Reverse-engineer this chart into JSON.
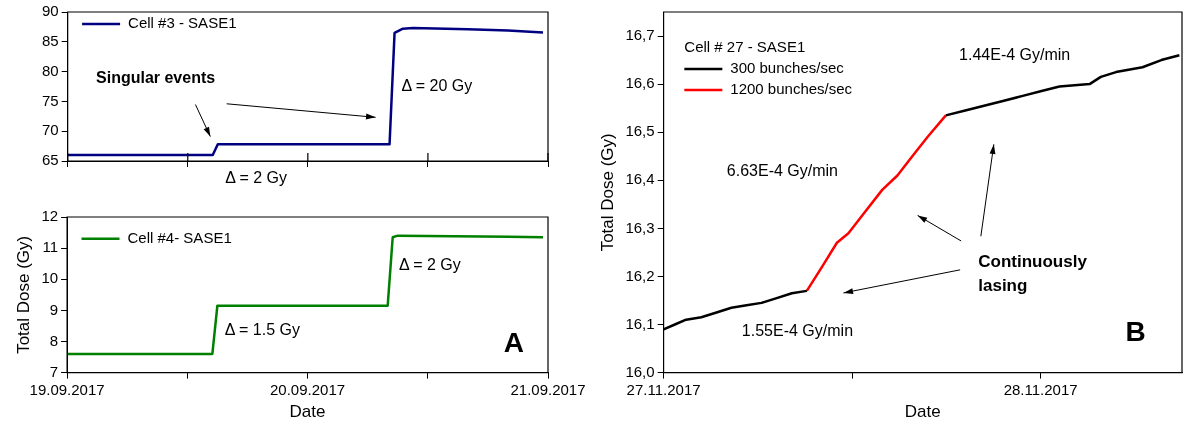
{
  "chart_data": [
    {
      "type": "line",
      "ylim": [
        65,
        90
      ],
      "yticks": [
        65,
        70,
        75,
        80,
        85,
        90
      ],
      "xlim": [
        "2017-09-19",
        "2017-09-21"
      ],
      "xticks": [
        {
          "value": "2017-09-19",
          "label": null
        },
        {
          "value": "2017-09-19T12:00",
          "label": null
        },
        {
          "value": "2017-09-20",
          "label": null
        },
        {
          "value": "2017-09-20T12:00",
          "label": null
        },
        {
          "value": "2017-09-21",
          "label": null
        }
      ],
      "tick_labels": "y",
      "grid": false,
      "legend": "top left",
      "marker": "none",
      "line_style": "solid",
      "series": [
        {
          "name": "Cell #3 - SASE1",
          "color": "#000080",
          "x": [
            "2017-09-19T00:00",
            "2017-09-19T14:30",
            "2017-09-19T15:00",
            "2017-09-20T08:10",
            "2017-09-20T08:40",
            "2017-09-20T09:30",
            "2017-09-20T10:30",
            "2017-09-20T16:00",
            "2017-09-20T20:00",
            "2017-09-20T23:30"
          ],
          "values": [
            66.0,
            66.0,
            67.8,
            67.8,
            86.5,
            87.2,
            87.3,
            87.1,
            86.9,
            86.55
          ]
        }
      ],
      "annotations": [
        "Singular events",
        "Δ = 20 Gy",
        "Δ = 2 Gy"
      ]
    },
    {
      "type": "line",
      "ylabel": "Total Dose (Gy)",
      "xlabel": "Date",
      "ylim": [
        7,
        12
      ],
      "yticks": [
        7,
        8,
        9,
        10,
        11,
        12
      ],
      "xlim": [
        "2017-09-19",
        "2017-09-21"
      ],
      "xticks": [
        {
          "value": "2017-09-19",
          "label": "19.09.2017"
        },
        {
          "value": "2017-09-19T12:00",
          "label": null
        },
        {
          "value": "2017-09-20",
          "label": "20.09.2017"
        },
        {
          "value": "2017-09-20T12:00",
          "label": null
        },
        {
          "value": "2017-09-21",
          "label": "21.09.2017"
        }
      ],
      "grid": false,
      "legend": "top left",
      "marker": "none",
      "line_style": "solid",
      "series": [
        {
          "name": "Cell #4- SASE1",
          "color": "#008000",
          "x": [
            "2017-09-19T00:00",
            "2017-09-19T14:30",
            "2017-09-19T15:00",
            "2017-09-20T08:00",
            "2017-09-20T08:30",
            "2017-09-20T09:00",
            "2017-09-20T23:30"
          ],
          "values": [
            7.6,
            7.6,
            9.15,
            9.15,
            11.35,
            11.4,
            11.35
          ]
        }
      ],
      "annotations": [
        "Δ = 1.5 Gy",
        "Δ = 2 Gy",
        "A"
      ]
    },
    {
      "type": "line",
      "ylabel": "Total Dose (Gy)",
      "xlabel": "Date",
      "legend_title": "Cell # 27 - SASE1",
      "ylim": [
        16.0,
        16.75
      ],
      "yticks": [
        {
          "value": 16.0,
          "label": "16,0"
        },
        {
          "value": 16.1,
          "label": "16,1"
        },
        {
          "value": 16.2,
          "label": "16,2"
        },
        {
          "value": 16.3,
          "label": "16,3"
        },
        {
          "value": 16.4,
          "label": "16,4"
        },
        {
          "value": 16.5,
          "label": "16,5"
        },
        {
          "value": 16.6,
          "label": "16,6"
        },
        {
          "value": 16.7,
          "label": "16,7"
        }
      ],
      "xlim": [
        "2017-11-27",
        "2017-11-28T09:00"
      ],
      "xticks": [
        {
          "value": "2017-11-27",
          "label": "27.11.2017"
        },
        {
          "value": "2017-11-27T12:00",
          "label": null
        },
        {
          "value": "2017-11-28",
          "label": "28.11.2017"
        }
      ],
      "grid": false,
      "legend": "top left",
      "marker": "none",
      "line_style": "solid",
      "series": [
        {
          "name": "300 bunches/sec",
          "color": "#000000",
          "x": [
            "2017-11-27T00:00",
            "2017-11-27T00:43",
            "2017-11-27T01:26",
            "2017-11-27T02:24",
            "2017-11-27T03:22",
            "2017-11-27T04:19",
            "2017-11-27T05:17",
            "2017-11-27T06:14",
            "2017-11-27T07:12",
            "2017-11-27T08:10",
            "2017-11-27T09:07",
            "2017-11-27T13:00",
            "2017-11-27T17:58",
            "2017-11-27T19:12",
            "2017-11-27T20:24",
            "2017-11-27T21:36",
            "2017-11-27T22:48",
            "2017-11-28T00:00",
            "2017-11-28T01:12",
            "2017-11-28T03:07",
            "2017-11-28T03:50",
            "2017-11-28T04:48",
            "2017-11-28T06:29",
            "2017-11-28T07:41",
            "2017-11-28T08:50"
          ],
          "values": [
            16.09,
            16.1,
            16.11,
            16.115,
            16.125,
            16.135,
            16.14,
            16.145,
            16.155,
            16.165,
            16.17,
            null,
            16.535,
            16.545,
            16.555,
            16.565,
            16.575,
            16.585,
            16.595,
            16.6,
            16.615,
            16.625,
            16.635,
            16.65,
            16.66
          ]
        },
        {
          "name": "1200 bunches/sec",
          "color": "#ff0000",
          "x": [
            "2017-11-27T09:07",
            "2017-11-27T10:05",
            "2017-11-27T11:02",
            "2017-11-27T11:46",
            "2017-11-27T12:43",
            "2017-11-27T13:55",
            "2017-11-27T14:53",
            "2017-11-27T15:50",
            "2017-11-27T16:48",
            "2017-11-27T17:58"
          ],
          "values": [
            16.17,
            16.22,
            16.27,
            16.29,
            16.33,
            16.38,
            16.41,
            16.45,
            16.49,
            16.535
          ]
        }
      ],
      "annotations": [
        "1.44E-4 Gy/min",
        "6.63E-4 Gy/min",
        "1.55E-4 Gy/min",
        "Continuously lasing",
        "B"
      ]
    }
  ]
}
